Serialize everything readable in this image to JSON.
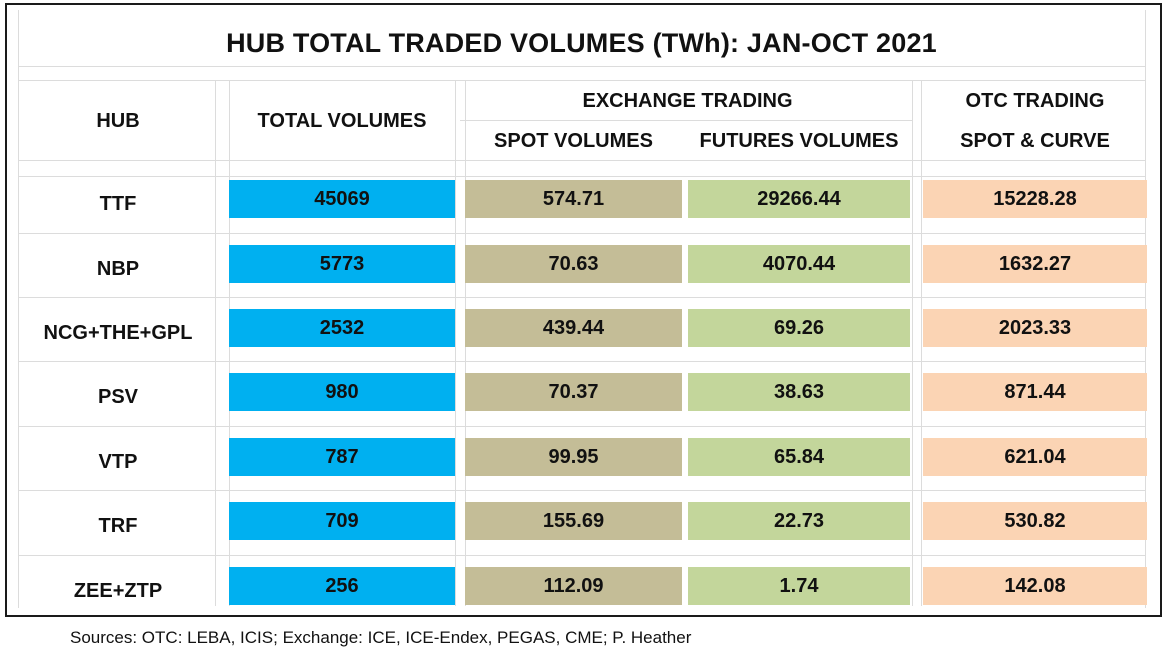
{
  "title": "HUB TOTAL TRADED VOLUMES (TWh):  JAN-OCT  2021",
  "headers": {
    "hub": "HUB",
    "total": "TOTAL VOLUMES",
    "exchange": "EXCHANGE TRADING",
    "spot": "SPOT VOLUMES",
    "futures": "FUTURES VOLUMES",
    "otc": "OTC TRADING",
    "otc_sub": "SPOT & CURVE"
  },
  "colors": {
    "total": "#00b0f0",
    "spot": "#c4bd97",
    "futures": "#c3d69b",
    "otc": "#fbd4b4"
  },
  "chart_data": {
    "type": "table",
    "title": "HUB TOTAL TRADED VOLUMES (TWh):  JAN-OCT  2021",
    "columns": [
      "HUB",
      "TOTAL VOLUMES",
      "SPOT VOLUMES",
      "FUTURES VOLUMES",
      "SPOT & CURVE"
    ],
    "rows": [
      {
        "hub": "TTF",
        "total": "45069",
        "spot": "574.71",
        "futures": "29266.44",
        "otc": "15228.28"
      },
      {
        "hub": "NBP",
        "total": "5773",
        "spot": "70.63",
        "futures": "4070.44",
        "otc": "1632.27"
      },
      {
        "hub": "NCG+THE+GPL",
        "total": "2532",
        "spot": "439.44",
        "futures": "69.26",
        "otc": "2023.33"
      },
      {
        "hub": "PSV",
        "total": "980",
        "spot": "70.37",
        "futures": "38.63",
        "otc": "871.44"
      },
      {
        "hub": "VTP",
        "total": "787",
        "spot": "99.95",
        "futures": "65.84",
        "otc": "621.04"
      },
      {
        "hub": "TRF",
        "total": "709",
        "spot": "155.69",
        "futures": "22.73",
        "otc": "530.82"
      },
      {
        "hub": "ZEE+ZTP",
        "total": "256",
        "spot": "112.09",
        "futures": "1.74",
        "otc": "142.08"
      }
    ]
  },
  "source": "Sources: OTC: LEBA, ICIS; Exchange: ICE, ICE-Endex, PEGAS, CME; P. Heather"
}
